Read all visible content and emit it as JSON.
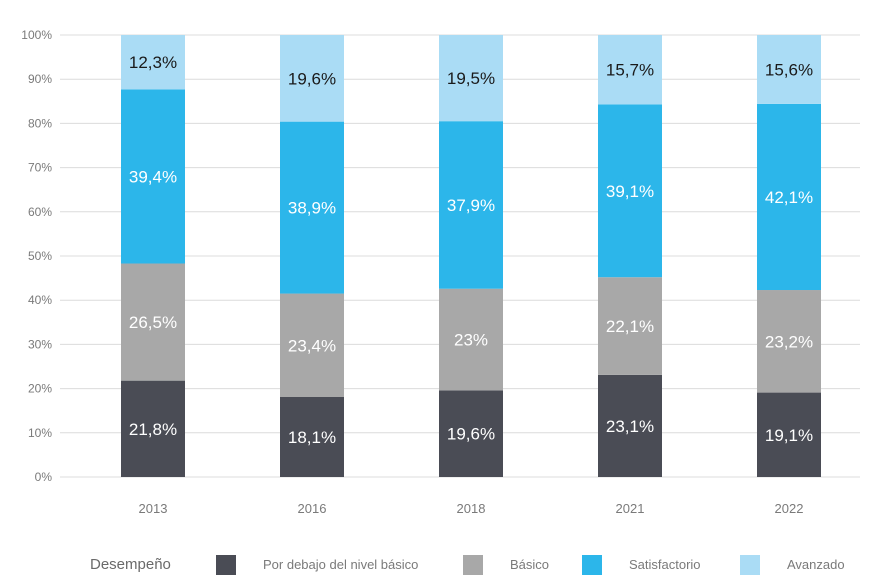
{
  "chart_data": {
    "type": "bar",
    "stacked": true,
    "categories": [
      "2013",
      "2016",
      "2018",
      "2021",
      "2022"
    ],
    "series": [
      {
        "name": "Por debajo del nivel básico",
        "color": "#4a4c55",
        "label_color": "#ffffff",
        "values": [
          21.8,
          18.1,
          19.6,
          23.1,
          19.1
        ],
        "labels": [
          "21,8%",
          "18,1%",
          "19,6%",
          "23,1%",
          "19,1%"
        ]
      },
      {
        "name": "Básico",
        "color": "#a8a8a8",
        "label_color": "#ffffff",
        "values": [
          26.5,
          23.4,
          23,
          22.1,
          23.2
        ],
        "labels": [
          "26,5%",
          "23,4%",
          "23%",
          "22,1%",
          "23,2%"
        ]
      },
      {
        "name": "Satisfactorio",
        "color": "#2cb6ea",
        "label_color": "#ffffff",
        "values": [
          39.4,
          38.9,
          37.9,
          39.1,
          42.1
        ],
        "labels": [
          "39,4%",
          "38,9%",
          "37,9%",
          "39,1%",
          "42,1%"
        ]
      },
      {
        "name": "Avanzado",
        "color": "#aadcf5",
        "label_color": "#1a1a1a",
        "values": [
          12.3,
          19.6,
          19.5,
          15.7,
          15.6
        ],
        "labels": [
          "12,3%",
          "19,6%",
          "19,5%",
          "15,7%",
          "15,6%"
        ]
      }
    ],
    "yticks": [
      "0%",
      "10%",
      "20%",
      "30%",
      "40%",
      "50%",
      "60%",
      "70%",
      "80%",
      "90%",
      "100%"
    ],
    "ylim": [
      0,
      100
    ],
    "grid": true,
    "legend": {
      "title": "Desempeño",
      "position": "bottom"
    }
  }
}
